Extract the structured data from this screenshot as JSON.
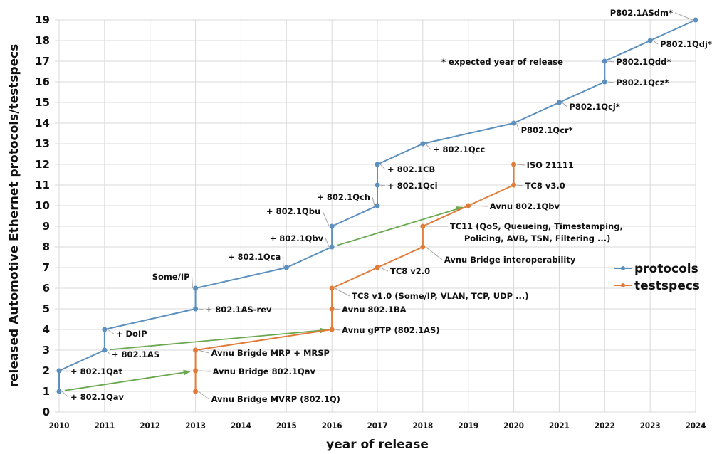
{
  "chart_data": {
    "type": "line",
    "title": "",
    "xlabel": "year of release",
    "ylabel": "released Automotive Ethernet protocols/testspecs",
    "xlim": [
      2010,
      2024
    ],
    "ylim": [
      0,
      19
    ],
    "x_ticks": [
      "2010",
      "2011",
      "2012",
      "2013",
      "2014",
      "2015",
      "2016",
      "2017",
      "2018",
      "2019",
      "2020",
      "2021",
      "2022",
      "2023",
      "2024"
    ],
    "y_ticks": [
      "0",
      "1",
      "2",
      "3",
      "4",
      "5",
      "6",
      "7",
      "8",
      "9",
      "10",
      "11",
      "12",
      "13",
      "14",
      "15",
      "16",
      "17",
      "18",
      "19"
    ],
    "grid": true,
    "legend_position": "right",
    "note": "* expected year of release",
    "colors": {
      "protocols": "#5b8fbe",
      "testspecs": "#e07b39",
      "arrows": "#6aa84f"
    },
    "series": [
      {
        "name": "protocols",
        "points": [
          {
            "x": 2010,
            "y": 1,
            "label": "+ 802.1Qav"
          },
          {
            "x": 2010,
            "y": 2,
            "label": "+ 802.1Qat"
          },
          {
            "x": 2011,
            "y": 3,
            "label": "+ 802.1AS"
          },
          {
            "x": 2011,
            "y": 4,
            "label": "+ DoIP"
          },
          {
            "x": 2013,
            "y": 5,
            "label": "+ 802.1AS-rev"
          },
          {
            "x": 2013,
            "y": 6,
            "label": "Some/IP"
          },
          {
            "x": 2015,
            "y": 7,
            "label": "+ 802.1Qca"
          },
          {
            "x": 2016,
            "y": 8,
            "label": "+ 802.1Qbv"
          },
          {
            "x": 2016,
            "y": 9,
            "label": "+ 802.1Qbu"
          },
          {
            "x": 2017,
            "y": 10,
            "label": "+ 802.1Qch"
          },
          {
            "x": 2017,
            "y": 11,
            "label": "+ 802.1Qci"
          },
          {
            "x": 2017,
            "y": 12,
            "label": "+ 802.1CB"
          },
          {
            "x": 2018,
            "y": 13,
            "label": "+ 802.1Qcc"
          },
          {
            "x": 2020,
            "y": 14,
            "label": "P802.1Qcr*"
          },
          {
            "x": 2021,
            "y": 15,
            "label": "P802.1Qcj*"
          },
          {
            "x": 2022,
            "y": 16,
            "label": "P802.1Qcz*"
          },
          {
            "x": 2022,
            "y": 17,
            "label": "P802.1Qdd*"
          },
          {
            "x": 2023,
            "y": 18,
            "label": "P802.1Qdj*"
          },
          {
            "x": 2024,
            "y": 19,
            "label": "P802.1ASdm*"
          }
        ]
      },
      {
        "name": "testspecs",
        "points": [
          {
            "x": 2013,
            "y": 1,
            "label": "Avnu Bridge MVRP (802.1Q)"
          },
          {
            "x": 2013,
            "y": 2,
            "label": "Avnu Bridge 802.1Qav"
          },
          {
            "x": 2013,
            "y": 3,
            "label": "Avnu Brigde MRP + MRSP"
          },
          {
            "x": 2016,
            "y": 4,
            "label": "Avnu gPTP (802.1AS)"
          },
          {
            "x": 2016,
            "y": 5,
            "label": "Avnu 802.1BA"
          },
          {
            "x": 2016,
            "y": 6,
            "label": "TC8 v1.0 (Some/IP, VLAN, TCP, UDP ...)"
          },
          {
            "x": 2017,
            "y": 7,
            "label": "TC8 v2.0"
          },
          {
            "x": 2018,
            "y": 8,
            "label": "Avnu Bridge interoperability"
          },
          {
            "x": 2018,
            "y": 9,
            "label": "TC11 (QoS, Queueing, Timestamping,|Policing, AVB, TSN, Filtering ...)"
          },
          {
            "x": 2019,
            "y": 10,
            "label": "Avnu 802.1Qbv"
          },
          {
            "x": 2020,
            "y": 11,
            "label": "TC8 v3.0"
          },
          {
            "x": 2020,
            "y": 12,
            "label": "ISO 21111"
          }
        ]
      }
    ],
    "arrows": [
      {
        "from": {
          "x": 2010,
          "y": 1
        },
        "to": {
          "x": 2013,
          "y": 2
        }
      },
      {
        "from": {
          "x": 2011,
          "y": 3
        },
        "to": {
          "x": 2016,
          "y": 4
        }
      },
      {
        "from": {
          "x": 2016,
          "y": 8
        },
        "to": {
          "x": 2019,
          "y": 10
        }
      }
    ]
  }
}
